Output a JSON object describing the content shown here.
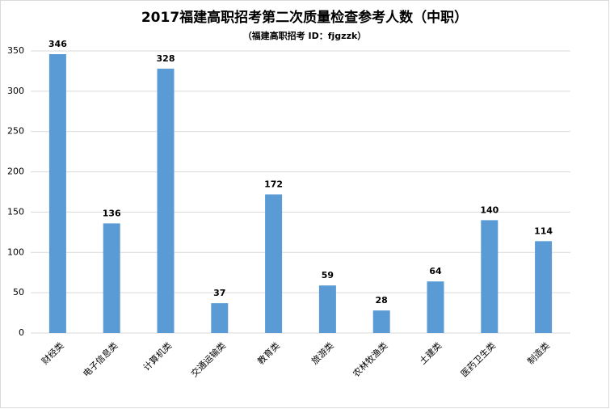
{
  "chart_data": {
    "type": "bar",
    "title": "2017福建高职招考第二次质量检查参考人数（中职）",
    "subtitle": "（福建高职招考 ID：fjgzzk）",
    "categories": [
      "财经类",
      "电子信息类",
      "计算机类",
      "交通运输类",
      "教育类",
      "旅游类",
      "农林牧渔类",
      "土建类",
      "医药卫生类",
      "制造类"
    ],
    "values": [
      346,
      136,
      328,
      37,
      172,
      59,
      28,
      64,
      140,
      114
    ],
    "color": "#5b9bd5",
    "ylim": [
      0,
      350
    ],
    "yticks": [
      0,
      50,
      100,
      150,
      200,
      250,
      300,
      350
    ],
    "grid": true
  }
}
